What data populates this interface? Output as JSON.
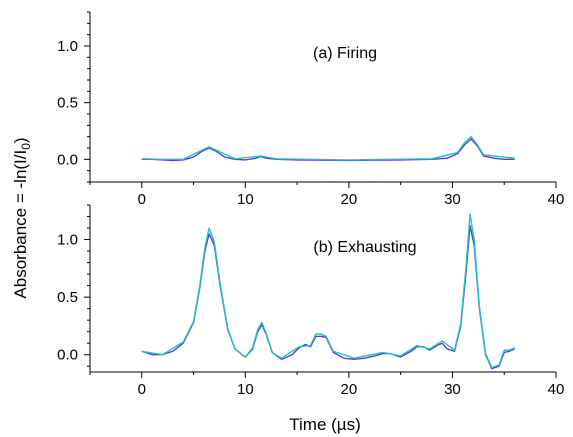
{
  "chart_data": [
    {
      "type": "line",
      "panel": "top",
      "annotation": "(a) Firing",
      "xlim": [
        -5,
        40
      ],
      "ylim": [
        -0.2,
        1.3
      ],
      "x_ticks": [
        0,
        10,
        20,
        30,
        40
      ],
      "y_ticks": [
        0.0,
        0.5,
        1.0
      ],
      "x_tick_labels": [
        "0",
        "10",
        "20",
        "30",
        "40"
      ],
      "y_tick_labels": [
        "0.0",
        "0.5",
        "1.0"
      ],
      "grid": false,
      "series": [
        {
          "color": "#6040c0",
          "x": [
            0,
            1,
            2,
            3,
            4,
            5,
            5.8,
            6.5,
            7.2,
            8,
            9,
            10,
            11,
            11.5,
            12,
            13,
            15,
            20,
            25,
            28,
            29.5,
            30.5,
            31.2,
            31.8,
            32.4,
            33,
            34,
            35,
            36
          ],
          "y": [
            0.0,
            0.0,
            -0.005,
            -0.01,
            -0.005,
            0.02,
            0.07,
            0.1,
            0.07,
            0.02,
            0.0,
            -0.005,
            0.01,
            0.025,
            0.01,
            0.0,
            -0.005,
            -0.01,
            -0.005,
            0.0,
            0.01,
            0.05,
            0.13,
            0.18,
            0.12,
            0.03,
            0.01,
            0.0,
            0.0
          ]
        },
        {
          "color": "#20c0d0",
          "x": [
            0,
            2,
            4,
            5.8,
            6.5,
            7.2,
            9,
            11.5,
            13,
            20,
            28,
            30.5,
            31.2,
            31.8,
            32.4,
            33,
            35,
            36
          ],
          "y": [
            0.005,
            0.0,
            0.0,
            0.08,
            0.11,
            0.08,
            0.005,
            0.03,
            0.005,
            -0.005,
            0.005,
            0.06,
            0.15,
            0.2,
            0.13,
            0.04,
            0.02,
            0.01
          ]
        }
      ]
    },
    {
      "type": "line",
      "panel": "bottom",
      "annotation": "(b) Exhausting",
      "xlim": [
        -5,
        40
      ],
      "ylim": [
        -0.15,
        1.3
      ],
      "x_ticks": [
        0,
        10,
        20,
        30,
        40
      ],
      "y_ticks": [
        0.0,
        0.5,
        1.0
      ],
      "x_tick_labels": [
        "0",
        "10",
        "20",
        "30",
        "40"
      ],
      "y_tick_labels": [
        "0.0",
        "0.5",
        "1.0"
      ],
      "grid": false,
      "series": [
        {
          "color": "#6040c0",
          "x": [
            0,
            1,
            2,
            3,
            4,
            5,
            5.6,
            6.1,
            6.5,
            7.0,
            7.6,
            8.3,
            9,
            10,
            10.7,
            11.2,
            11.6,
            12.0,
            12.6,
            13.5,
            14.5,
            15.2,
            15.8,
            16.3,
            16.8,
            17.3,
            17.8,
            18.5,
            19.5,
            20.5,
            21.5,
            22.5,
            23.3,
            24.0,
            25,
            26,
            26.6,
            27.2,
            27.8,
            28.5,
            29.0,
            29.5,
            30.2,
            30.8,
            31.3,
            31.7,
            32.1,
            32.6,
            33.2,
            33.8,
            34.5,
            35.0,
            35.5,
            36.0
          ],
          "y": [
            0.03,
            0.0,
            0.0,
            0.03,
            0.1,
            0.28,
            0.58,
            0.9,
            1.05,
            0.95,
            0.58,
            0.22,
            0.05,
            -0.02,
            0.05,
            0.2,
            0.26,
            0.18,
            0.02,
            -0.04,
            0.0,
            0.06,
            0.09,
            0.07,
            0.16,
            0.16,
            0.15,
            0.02,
            -0.03,
            -0.04,
            -0.03,
            -0.01,
            0.01,
            0.01,
            -0.02,
            0.03,
            0.07,
            0.07,
            0.04,
            0.08,
            0.1,
            0.05,
            0.03,
            0.25,
            0.7,
            1.12,
            0.95,
            0.4,
            0.0,
            -0.12,
            -0.1,
            0.02,
            0.03,
            0.05
          ]
        },
        {
          "color": "#20c0d0",
          "x": [
            0,
            2,
            4,
            5,
            5.6,
            6.1,
            6.5,
            7.0,
            7.6,
            8.3,
            9,
            10,
            10.7,
            11.2,
            11.6,
            12.0,
            12.6,
            13.5,
            15.2,
            16.3,
            16.8,
            17.3,
            17.8,
            18.5,
            20.5,
            23.3,
            25,
            26.6,
            27.8,
            29.0,
            30.2,
            30.8,
            31.3,
            31.7,
            32.1,
            32.6,
            33.2,
            33.8,
            34.5,
            35.0,
            35.5,
            36.0
          ],
          "y": [
            0.03,
            0.0,
            0.11,
            0.29,
            0.6,
            0.93,
            1.1,
            0.98,
            0.6,
            0.23,
            0.05,
            -0.02,
            0.06,
            0.22,
            0.28,
            0.19,
            0.02,
            -0.03,
            0.07,
            0.08,
            0.18,
            0.18,
            0.16,
            0.03,
            -0.03,
            0.02,
            -0.01,
            0.08,
            0.05,
            0.12,
            0.04,
            0.27,
            0.75,
            1.22,
            1.0,
            0.42,
            0.01,
            -0.11,
            -0.09,
            0.04,
            0.04,
            0.06
          ]
        }
      ]
    }
  ],
  "y_axis_title": {
    "text_main": "Absorbance = -ln(I/I",
    "subscript": "0",
    "text_close": ")"
  },
  "x_axis_title": "Time (µs)"
}
